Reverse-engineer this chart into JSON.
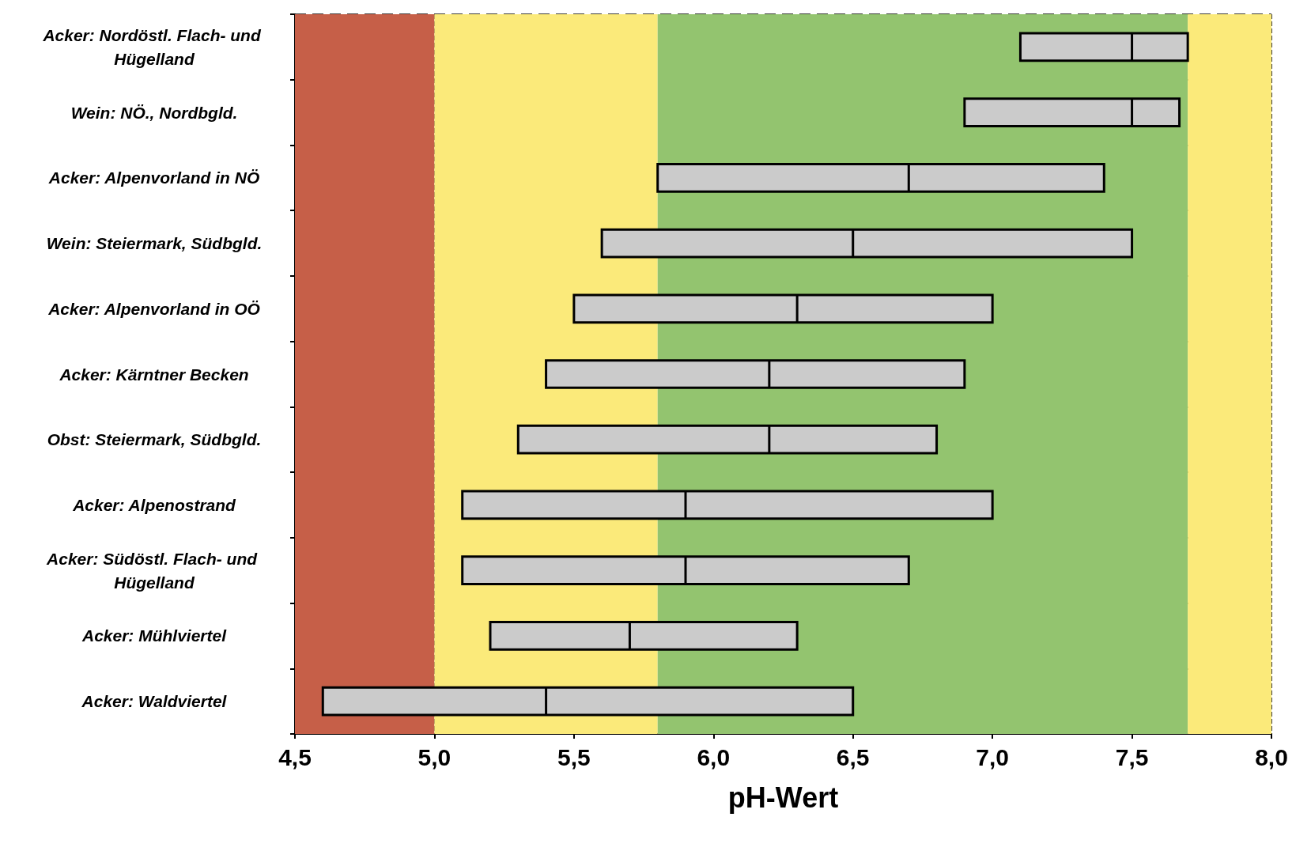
{
  "chart_data": {
    "type": "box",
    "orientation": "horizontal",
    "xlabel": "pH-Wert",
    "color": "#cbcbcb",
    "categories": [
      "Acker: Nordöstl. Flach- und Hügelland",
      "Wein: NÖ., Nordbgld.",
      "Acker: Alpenvorland in NÖ",
      "Wein: Steiermark, Südbgld.",
      "Acker: Alpenvorland in OÖ",
      "Acker: Kärntner Becken",
      "Obst: Steiermark, Südbgld.",
      "Acker: Alpenostrand",
      "Acker: Südöstl. Flach- und Hügelland",
      "Acker: Mühlviertel",
      "Acker: Waldviertel"
    ],
    "boxes": [
      {
        "low": 7.1,
        "q1": 7.1,
        "median": 7.5,
        "q3": 7.7,
        "high": 7.7
      },
      {
        "low": 6.9,
        "q1": 6.9,
        "median": 7.5,
        "q3": 7.67,
        "high": 7.67
      },
      {
        "low": 5.8,
        "q1": 5.8,
        "median": 6.7,
        "q3": 7.4,
        "high": 7.4
      },
      {
        "low": 5.6,
        "q1": 5.6,
        "median": 6.5,
        "q3": 7.5,
        "high": 7.5
      },
      {
        "low": 5.5,
        "q1": 5.5,
        "median": 6.3,
        "q3": 7.0,
        "high": 7.0
      },
      {
        "low": 5.4,
        "q1": 5.4,
        "median": 6.2,
        "q3": 6.9,
        "high": 6.9
      },
      {
        "low": 5.3,
        "q1": 5.3,
        "median": 6.2,
        "q3": 6.8,
        "high": 6.8
      },
      {
        "low": 5.1,
        "q1": 5.1,
        "median": 5.9,
        "q3": 7.0,
        "high": 7.0
      },
      {
        "low": 5.1,
        "q1": 5.1,
        "median": 5.9,
        "q3": 6.7,
        "high": 6.7
      },
      {
        "low": 5.2,
        "q1": 5.2,
        "median": 5.7,
        "q3": 6.3,
        "high": 6.3
      },
      {
        "low": 4.6,
        "q1": 4.6,
        "median": 5.4,
        "q3": 6.5,
        "high": 6.5
      }
    ],
    "xlim": [
      4.5,
      8.0
    ],
    "xticks": [
      {
        "value": 4.5,
        "label": "4,5"
      },
      {
        "value": 5.0,
        "label": "5,0"
      },
      {
        "value": 5.5,
        "label": "5,5"
      },
      {
        "value": 6.0,
        "label": "6,0"
      },
      {
        "value": 6.5,
        "label": "6,5"
      },
      {
        "value": 7.0,
        "label": "7,0"
      },
      {
        "value": 7.5,
        "label": "7,5"
      },
      {
        "value": 8.0,
        "label": "8,0"
      }
    ],
    "bands": [
      {
        "axis": "x",
        "from": 4.5,
        "to": 5.0,
        "color": "#c65f48"
      },
      {
        "axis": "x",
        "from": 5.0,
        "to": 5.8,
        "color": "#fbea7a"
      },
      {
        "axis": "x",
        "from": 5.8,
        "to": 7.7,
        "color": "#93c46f"
      },
      {
        "axis": "x",
        "from": 7.7,
        "to": 8.0,
        "color": "#fbea7a"
      }
    ],
    "grid": true
  }
}
